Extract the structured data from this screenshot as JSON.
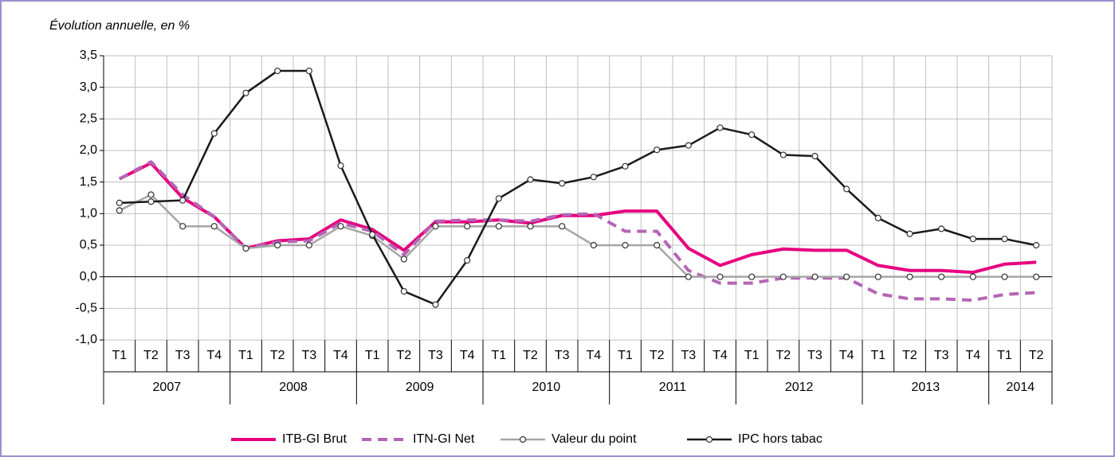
{
  "chart_data": {
    "type": "line",
    "y_axis_label": "Évolution annuelle, en %",
    "categories": [
      "T1",
      "T2",
      "T3",
      "T4",
      "T1",
      "T2",
      "T3",
      "T4",
      "T1",
      "T2",
      "T3",
      "T4",
      "T1",
      "T2",
      "T3",
      "T4",
      "T1",
      "T2",
      "T3",
      "T4",
      "T1",
      "T2",
      "T3",
      "T4",
      "T1",
      "T2",
      "T3",
      "T4",
      "T1",
      "T2"
    ],
    "groups": [
      {
        "label": "2007",
        "size": 4
      },
      {
        "label": "2008",
        "size": 4
      },
      {
        "label": "2009",
        "size": 4
      },
      {
        "label": "2010",
        "size": 4
      },
      {
        "label": "2011",
        "size": 4
      },
      {
        "label": "2012",
        "size": 4
      },
      {
        "label": "2013",
        "size": 4
      },
      {
        "label": "2014",
        "size": 2
      }
    ],
    "series": [
      {
        "name": "ITB-GI Brut",
        "color": "#e6007e",
        "dash": false,
        "marker": false,
        "values": [
          1.55,
          1.8,
          1.25,
          0.95,
          0.45,
          0.57,
          0.6,
          0.9,
          0.75,
          0.42,
          0.87,
          0.87,
          0.9,
          0.85,
          0.97,
          0.97,
          1.04,
          1.04,
          0.45,
          0.18,
          0.35,
          0.44,
          0.42,
          0.42,
          0.18,
          0.1,
          0.1,
          0.07,
          0.2,
          0.23
        ]
      },
      {
        "name": "ITN-GI Net",
        "color": "#b565b5",
        "dash": true,
        "marker": false,
        "values": [
          1.55,
          1.82,
          1.3,
          0.95,
          0.45,
          0.55,
          0.57,
          0.85,
          0.72,
          0.35,
          0.88,
          0.9,
          0.9,
          0.88,
          0.98,
          1.0,
          0.72,
          0.72,
          0.1,
          -0.1,
          -0.1,
          -0.02,
          -0.02,
          -0.02,
          -0.27,
          -0.35,
          -0.35,
          -0.37,
          -0.28,
          -0.25
        ]
      },
      {
        "name": "Valeur du point",
        "color": "#a6a6a6",
        "dash": false,
        "marker": true,
        "values": [
          1.05,
          1.3,
          0.8,
          0.8,
          0.45,
          0.5,
          0.5,
          0.8,
          0.65,
          0.28,
          0.8,
          0.8,
          0.8,
          0.8,
          0.8,
          0.5,
          0.5,
          0.5,
          0,
          0,
          0,
          0,
          0,
          0,
          0,
          0,
          0,
          0,
          0,
          0
        ]
      },
      {
        "name": "IPC hors tabac",
        "color": "#1a1a1a",
        "dash": false,
        "marker": true,
        "values": [
          1.17,
          1.19,
          1.21,
          2.27,
          2.91,
          3.26,
          3.26,
          1.76,
          0.67,
          -0.23,
          -0.44,
          0.26,
          1.24,
          1.54,
          1.48,
          1.58,
          1.75,
          2.01,
          2.08,
          2.36,
          2.25,
          1.93,
          1.91,
          1.39,
          0.93,
          0.68,
          0.76,
          0.6,
          0.6,
          0.5
        ]
      }
    ],
    "ylim": [
      -1,
      3.5
    ],
    "yticks": [
      {
        "value": -1,
        "label": "-1,0"
      },
      {
        "value": -0.5,
        "label": "-0,5"
      },
      {
        "value": 0,
        "label": "0,0"
      },
      {
        "value": 0.5,
        "label": "0,5"
      },
      {
        "value": 1,
        "label": "1,0"
      },
      {
        "value": 1.5,
        "label": "1,5"
      },
      {
        "value": 2,
        "label": "2,0"
      },
      {
        "value": 2.5,
        "label": "2,5"
      },
      {
        "value": 3,
        "label": "3,0"
      },
      {
        "value": 3.5,
        "label": "3,5"
      }
    ],
    "grid": true
  }
}
